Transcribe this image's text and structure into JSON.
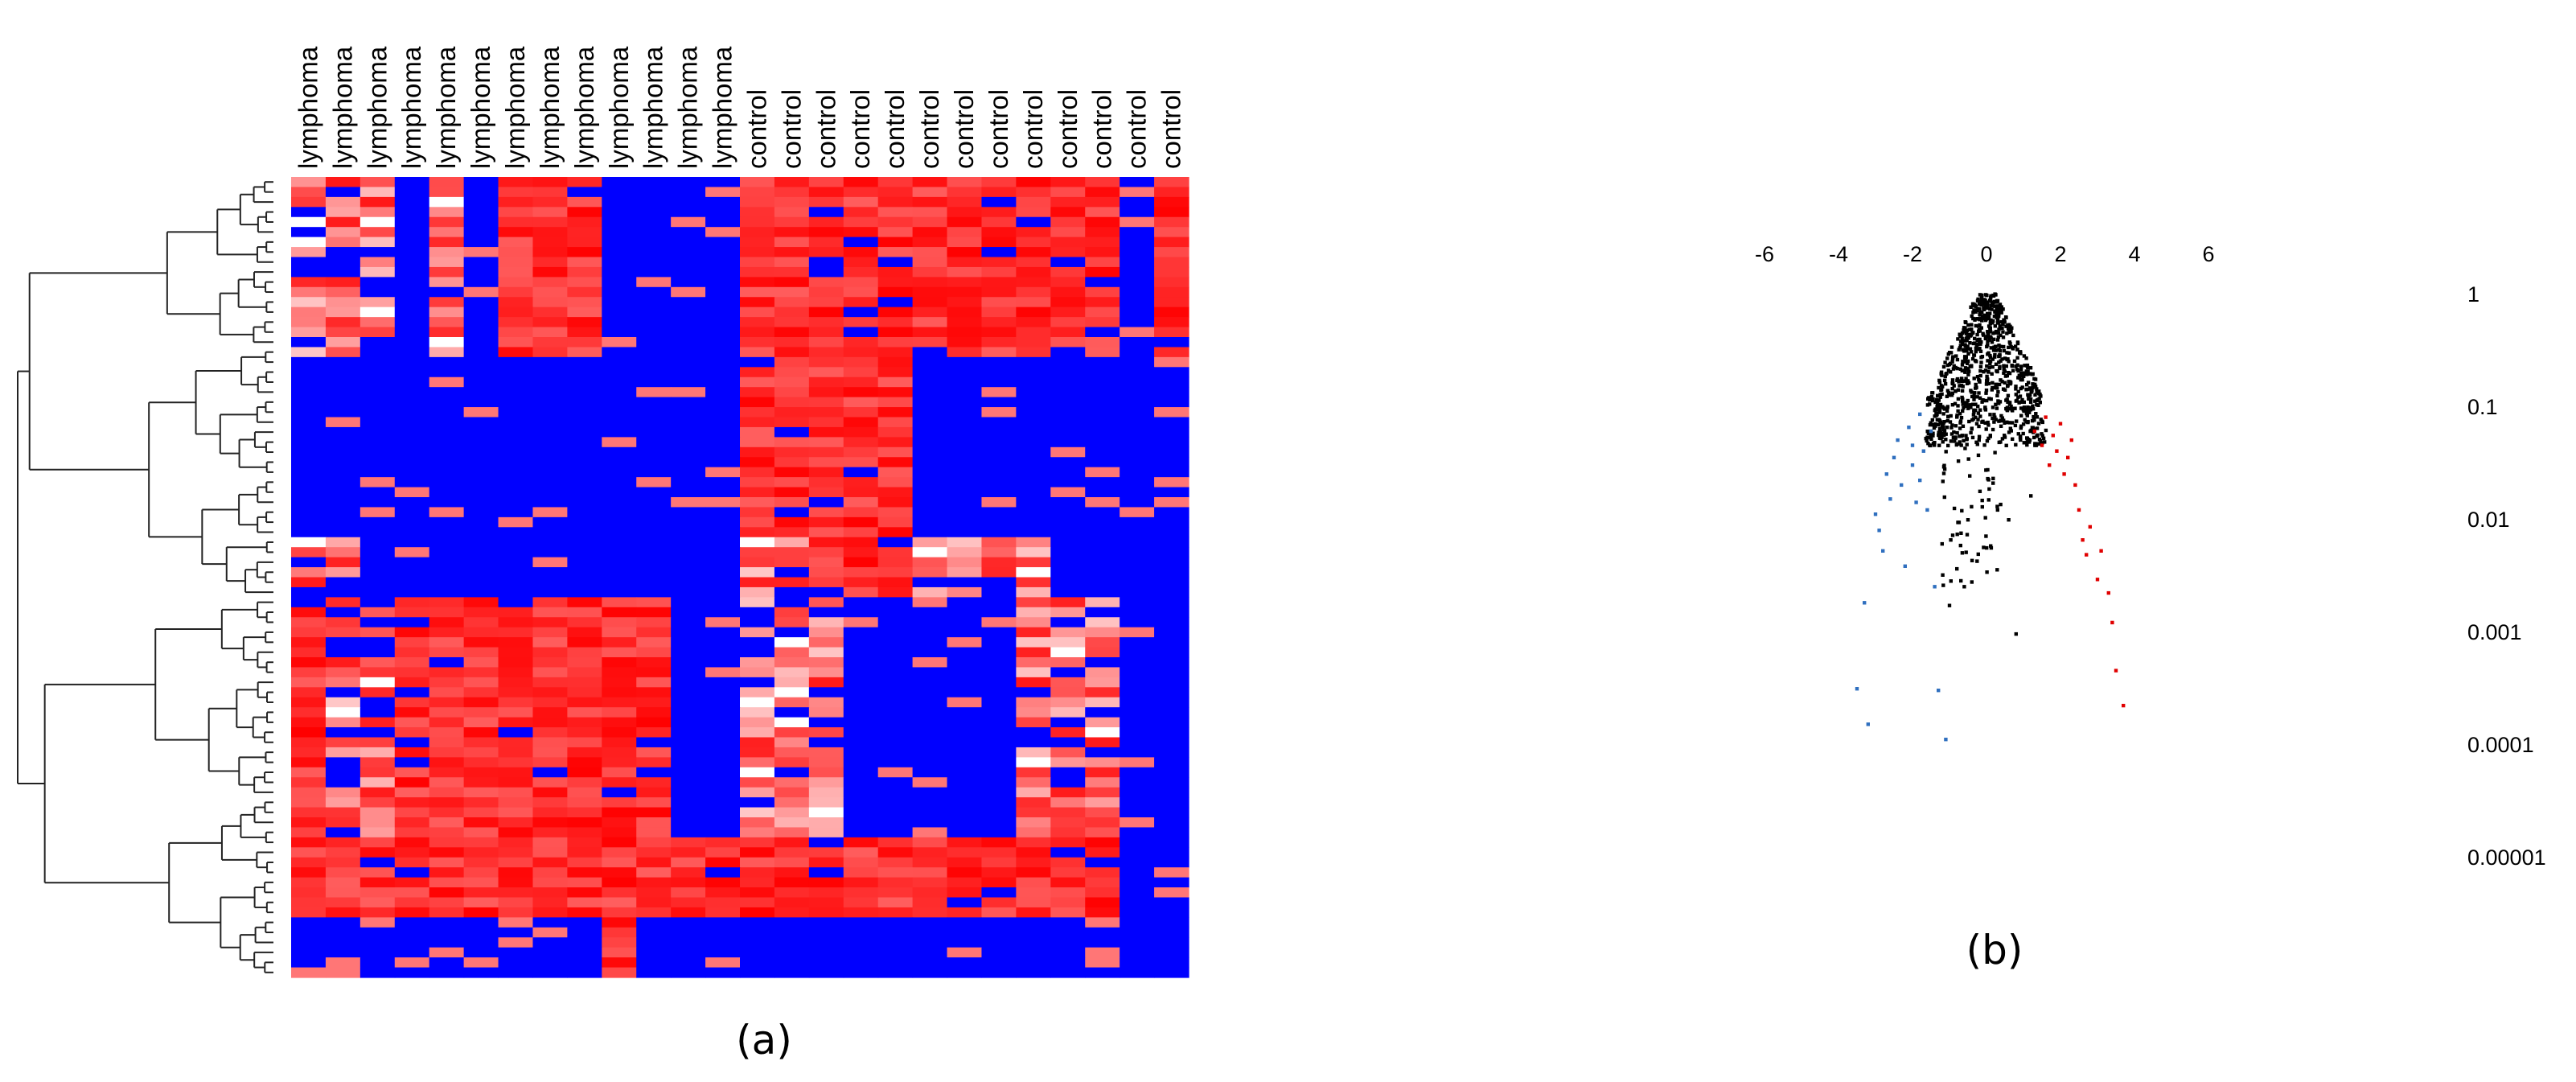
{
  "panels": {
    "a_label": "(a)",
    "b_label": "(b)"
  },
  "colors": {
    "high": "#ff0000",
    "low": "#0000ff",
    "mid": "#ffffff",
    "up": "#e00000",
    "down": "#2f6fbf",
    "ns": "#000000",
    "tree": "#222222"
  },
  "chart_data": [
    {
      "type": "heatmap",
      "panel": "(a)",
      "columns": [
        "lymphoma",
        "lymphoma",
        "lymphoma",
        "lymphoma",
        "lymphoma",
        "lymphoma",
        "lymphoma",
        "lymphoma",
        "lymphoma",
        "lymphoma",
        "lymphoma",
        "lymphoma",
        "lymphoma",
        "control",
        "control",
        "control",
        "control",
        "control",
        "control",
        "control",
        "control",
        "control",
        "control",
        "control",
        "control",
        "control"
      ],
      "row_count": 80,
      "dendrogram": "rows",
      "color_scale": [
        "low",
        "mid",
        "high"
      ],
      "column_groups": [
        {
          "label": "lymphoma",
          "count": 13
        },
        {
          "label": "control",
          "count": 13
        }
      ],
      "row_blocks": [
        {
          "rows": 18,
          "lymphoma": [
            "mix",
            "mix",
            "mix",
            "low",
            "mix",
            "low",
            "high",
            "high",
            "high",
            "low",
            "low",
            "low",
            "low"
          ],
          "control": [
            "high",
            "high",
            "high",
            "high",
            "high",
            "high",
            "high",
            "high",
            "high",
            "high",
            "high",
            "low",
            "high"
          ]
        },
        {
          "rows": 18,
          "lymphoma": [
            "low",
            "low",
            "low",
            "low",
            "low",
            "low",
            "low",
            "low",
            "low",
            "low",
            "low",
            "low",
            "low"
          ],
          "control": [
            "high",
            "high",
            "high",
            "high",
            "high",
            "low",
            "low",
            "low",
            "low",
            "low",
            "low",
            "low",
            "low"
          ]
        },
        {
          "rows": 6,
          "lymphoma": [
            "mix",
            "mix",
            "low",
            "low",
            "low",
            "low",
            "low",
            "low",
            "low",
            "low",
            "low",
            "low",
            "low"
          ],
          "control": [
            "mix",
            "mix",
            "high",
            "high",
            "high",
            "mix",
            "mix",
            "mix",
            "mix",
            "low",
            "low",
            "low",
            "low"
          ]
        },
        {
          "rows": 24,
          "lymphoma": [
            "high",
            "mix",
            "mix",
            "high",
            "high",
            "high",
            "high",
            "high",
            "high",
            "high",
            "high",
            "low",
            "low"
          ],
          "control": [
            "mix",
            "mix",
            "mix",
            "low",
            "low",
            "low",
            "low",
            "low",
            "mix",
            "mix",
            "mix",
            "low",
            "low"
          ]
        },
        {
          "rows": 8,
          "lymphoma": [
            "high",
            "high",
            "high",
            "high",
            "high",
            "high",
            "high",
            "high",
            "high",
            "high",
            "high",
            "high",
            "high"
          ],
          "control": [
            "high",
            "high",
            "high",
            "high",
            "high",
            "high",
            "high",
            "high",
            "high",
            "high",
            "high",
            "low",
            "low"
          ]
        },
        {
          "rows": 6,
          "lymphoma": [
            "low",
            "low",
            "low",
            "low",
            "low",
            "low",
            "low",
            "low",
            "low",
            "high",
            "low",
            "low",
            "low"
          ],
          "control": [
            "low",
            "low",
            "low",
            "low",
            "low",
            "low",
            "low",
            "low",
            "low",
            "low",
            "low",
            "low",
            "low"
          ]
        }
      ]
    },
    {
      "type": "scatter",
      "panel": "(b)",
      "x_ticks": [
        -6,
        -4,
        -2,
        0,
        2,
        4,
        6
      ],
      "y_ticks": [
        1,
        0.1,
        0.01,
        0.001,
        0.0001,
        1e-05
      ],
      "y_tick_labels": [
        "1",
        "0.1",
        "0.01",
        "0.001",
        "0.0001",
        "0.00001"
      ],
      "x_range": [
        -6,
        6
      ],
      "y_scale": "log",
      "y_range": [
        1,
        1e-05
      ],
      "y_axis_reversed": true,
      "series": [
        {
          "group": "down",
          "color": "#2f6fbf",
          "points": [
            [
              -3.5,
              0.00031
            ],
            [
              -3.3,
              0.0018
            ],
            [
              -3.2,
              0.00015
            ],
            [
              -3.0,
              0.011
            ],
            [
              -2.9,
              0.0079
            ],
            [
              -2.8,
              0.0052
            ],
            [
              -2.7,
              0.025
            ],
            [
              -2.5,
              0.035
            ],
            [
              -2.4,
              0.05
            ],
            [
              -2.3,
              0.02
            ],
            [
              -2.2,
              0.0038
            ],
            [
              -2.1,
              0.065
            ],
            [
              -2.0,
              0.03
            ],
            [
              -1.9,
              0.014
            ],
            [
              -1.8,
              0.085
            ],
            [
              -1.7,
              0.04
            ],
            [
              -1.6,
              0.012
            ],
            [
              -1.5,
              0.06
            ],
            [
              -1.4,
              0.0025
            ],
            [
              -1.3,
              0.0003
            ],
            [
              -1.1,
              0.00011
            ],
            [
              -2.6,
              0.015
            ],
            [
              -2.0,
              0.045
            ],
            [
              -1.8,
              0.022
            ]
          ]
        },
        {
          "group": "up",
          "color": "#e00000",
          "points": [
            [
              1.3,
              0.06
            ],
            [
              1.5,
              0.045
            ],
            [
              1.6,
              0.08
            ],
            [
              1.7,
              0.03
            ],
            [
              1.8,
              0.055
            ],
            [
              1.9,
              0.04
            ],
            [
              2.0,
              0.07
            ],
            [
              2.1,
              0.025
            ],
            [
              2.2,
              0.035
            ],
            [
              2.3,
              0.05
            ],
            [
              2.4,
              0.02
            ],
            [
              2.5,
              0.012
            ],
            [
              2.6,
              0.0065
            ],
            [
              2.7,
              0.0048
            ],
            [
              2.8,
              0.0085
            ],
            [
              3.0,
              0.0029
            ],
            [
              3.1,
              0.0052
            ],
            [
              3.3,
              0.0022
            ],
            [
              3.4,
              0.0012
            ],
            [
              3.5,
              0.00045
            ],
            [
              3.7,
              0.00022
            ]
          ]
        },
        {
          "group": "ns",
          "color": "#000000",
          "points": [
            [
              -1.0,
              0.0017
            ],
            [
              -0.8,
              0.0036
            ],
            [
              -0.7,
              0.0058
            ],
            [
              -0.5,
              0.0098
            ],
            [
              0.3,
              0.012
            ],
            [
              0.6,
              0.0098
            ],
            [
              0.8,
              0.00095
            ],
            [
              1.2,
              0.016
            ],
            [
              -1.2,
              0.006
            ],
            [
              -0.6,
              0.0025
            ]
          ]
        }
      ],
      "ns_cloud": "dense black points within a cone from (0, 1) widening toward |x| of about 2.2 at p near 0.05"
    }
  ]
}
